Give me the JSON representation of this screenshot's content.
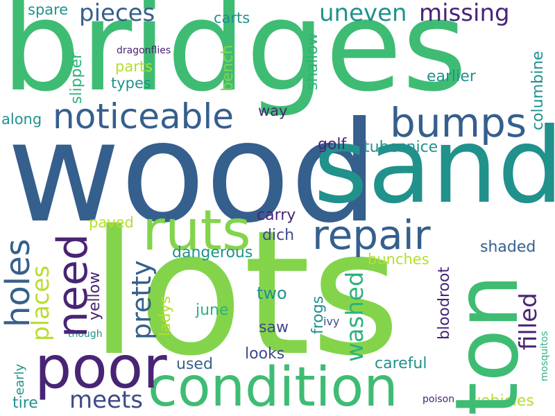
{
  "palette": {
    "background": "#ffffff",
    "green": "#3fbc73",
    "lime": "#84d44b",
    "yellowgreen": "#b5de2b",
    "darkpurple": "#482475",
    "blue": "#355f8d",
    "teal": "#21918c",
    "slate": "#3e4a89",
    "sea": "#2db27d"
  },
  "words": {
    "bridges": "bridges",
    "wood": "wood",
    "sand": "sand",
    "lots": "lots",
    "ton": "ton",
    "condition": "condition",
    "poor": "poor",
    "ruts": "ruts",
    "repair": "repair",
    "need": "need",
    "bumps": "bumps",
    "noticeable": "noticeable",
    "holes": "holes",
    "pieces": "pieces",
    "uneven": "uneven",
    "missing": "missing",
    "filled": "filled",
    "washed": "washed",
    "pretty": "pretty",
    "places": "places",
    "meets": "meets",
    "spare": "spare",
    "carts": "carts",
    "shallow": "shallow",
    "columbine": "columbine",
    "dragonflies": "dragonflies",
    "parts": "parts",
    "types": "types",
    "slipper": "slipper",
    "bench": "bench",
    "earlier": "earlier",
    "along": "along",
    "way": "way",
    "golf": "golf",
    "tubesnice": "tubesnice",
    "paved": "paved",
    "carry": "carry",
    "dich": "dich",
    "dangerous": "dangerous",
    "shaded": "shaded",
    "bunches": "bunches",
    "bloodroot": "bloodroot",
    "yellow": "yellow",
    "ladys": "ladys",
    "two": "two",
    "june": "june",
    "frogs": "frogs",
    "ivy": "ivy",
    "saw": "saw",
    "though": "though",
    "looks": "looks",
    "careful": "careful",
    "used": "used",
    "early": "early",
    "tire": "tire",
    "vehicles": "vehicles",
    "poison": "poison",
    "mosquitos": "mosquitos"
  }
}
